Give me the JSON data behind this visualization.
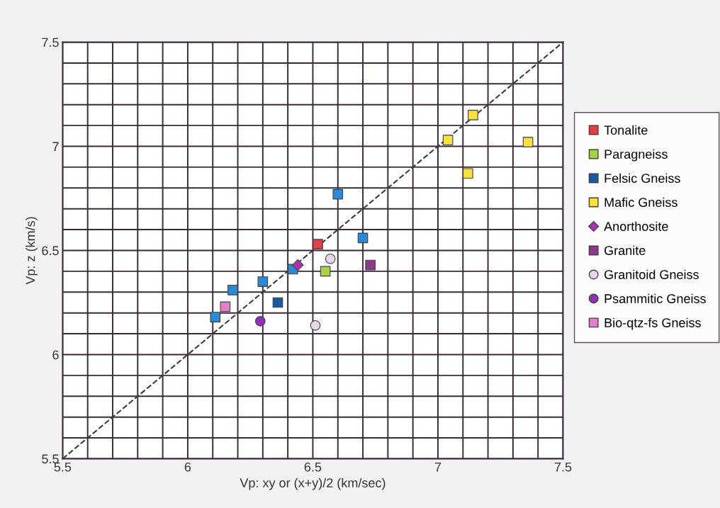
{
  "chart_data": {
    "type": "scatter",
    "xlabel": "Vp: xy or (x+y)/2 (km/sec)",
    "ylabel": "Vp: z (km/s)",
    "xlim": [
      5.5,
      7.5
    ],
    "ylim": [
      5.5,
      7.5
    ],
    "xticks": [
      5.5,
      {
        "value": 5.6,
        "label": null
      },
      {
        "value": 5.7,
        "label": null
      },
      {
        "value": 5.8,
        "label": null
      },
      {
        "value": 5.9,
        "label": null
      },
      6,
      {
        "value": 6.1,
        "label": null
      },
      {
        "value": 6.2,
        "label": null
      },
      {
        "value": 6.3,
        "label": null
      },
      {
        "value": 6.4,
        "label": null
      },
      6.5,
      {
        "value": 6.6,
        "label": null
      },
      {
        "value": 6.7,
        "label": null
      },
      {
        "value": 6.8,
        "label": null
      },
      {
        "value": 6.9,
        "label": null
      },
      7,
      {
        "value": 7.1,
        "label": null
      },
      {
        "value": 7.2,
        "label": null
      },
      {
        "value": 7.3,
        "label": null
      },
      {
        "value": 7.4,
        "label": null
      },
      7.5
    ],
    "yticks": [
      5.5,
      {
        "value": 5.6,
        "label": null
      },
      {
        "value": 5.7,
        "label": null
      },
      {
        "value": 5.8,
        "label": null
      },
      {
        "value": 5.9,
        "label": null
      },
      6,
      {
        "value": 6.1,
        "label": null
      },
      {
        "value": 6.2,
        "label": null
      },
      {
        "value": 6.3,
        "label": null
      },
      {
        "value": 6.4,
        "label": null
      },
      6.5,
      {
        "value": 6.6,
        "label": null
      },
      {
        "value": 6.7,
        "label": null
      },
      {
        "value": 6.8,
        "label": null
      },
      {
        "value": 6.9,
        "label": null
      },
      7,
      {
        "value": 7.1,
        "label": null
      },
      {
        "value": 7.2,
        "label": null
      },
      {
        "value": 7.3,
        "label": null
      },
      {
        "value": 7.4,
        "label": null
      },
      7.5
    ],
    "grid": true,
    "legend": "right",
    "marker": "square",
    "series": [
      {
        "type": "line",
        "color": "#3a3a3a",
        "line_style": "dashed",
        "marker": "none",
        "x": [
          5.5,
          7.5
        ],
        "values": [
          5.5,
          7.5
        ]
      },
      {
        "name": "Tonalite",
        "color": "#e0404a",
        "x": [
          6.52
        ],
        "values": [
          6.53
        ]
      },
      {
        "name": "Paragneiss",
        "color": "#a8d048",
        "x": [
          6.55
        ],
        "values": [
          6.4
        ]
      },
      {
        "name": "Felsic Gneiss",
        "color": "#1a5a9a",
        "colors": [
          "#2a8ad8",
          "#2a8ad8",
          "#2a8ad8",
          "#2a8ad8",
          "#2a8ad8",
          "#1a5a9a",
          "#2a8ad8"
        ],
        "x": [
          6.6,
          6.7,
          6.42,
          6.3,
          6.18,
          6.36,
          6.11
        ],
        "values": [
          6.77,
          6.56,
          6.41,
          6.35,
          6.31,
          6.25,
          6.18
        ]
      },
      {
        "name": "Mafic Gneiss",
        "color": "#f8e040",
        "x": [
          7.14,
          7.04,
          7.36,
          7.12
        ],
        "values": [
          7.15,
          7.03,
          7.02,
          6.87
        ]
      },
      {
        "name": "Anorthosite",
        "color": "#b030b0",
        "marker": "diamond",
        "x": [
          6.44
        ],
        "values": [
          6.43
        ]
      },
      {
        "name": "Granite",
        "color": "#8a3a8a",
        "x": [
          6.73
        ],
        "values": [
          6.43
        ]
      },
      {
        "name": "Granitoid Gneiss",
        "color": "#e6d6e6",
        "marker": "circle",
        "x": [
          6.57,
          6.51
        ],
        "values": [
          6.46,
          6.14
        ]
      },
      {
        "name": "Psammitic Gneiss",
        "color": "#9030b8",
        "marker": "circle",
        "x": [
          6.29
        ],
        "values": [
          6.16
        ]
      },
      {
        "name": "Bio-qtz-fs Gneiss",
        "color": "#e080c8",
        "x": [
          6.15
        ],
        "values": [
          6.23
        ]
      }
    ]
  }
}
